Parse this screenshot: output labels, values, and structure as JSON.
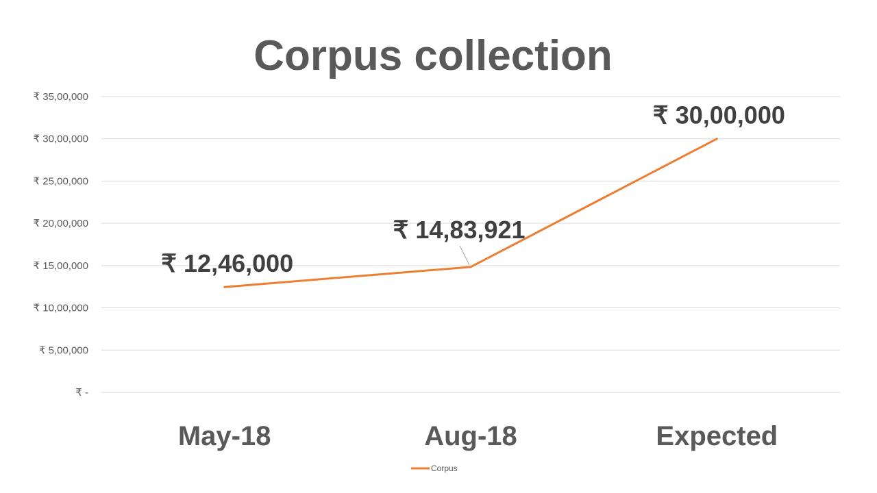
{
  "chart_data": {
    "type": "line",
    "title": "Corpus collection",
    "categories": [
      "May-18",
      "Aug-18",
      "Expected"
    ],
    "series": [
      {
        "name": "Corpus",
        "values": [
          1246000,
          1483921,
          3000000
        ],
        "data_labels": [
          "₹ 12,46,000",
          "₹ 14,83,921",
          "₹ 30,00,000"
        ]
      }
    ],
    "ylim": [
      0,
      3500000
    ],
    "y_ticks": [
      0,
      500000,
      1000000,
      1500000,
      2000000,
      2500000,
      3000000,
      3500000
    ],
    "y_tick_labels": [
      "₹ -",
      "₹ 5,00,000",
      "₹ 10,00,000",
      "₹ 15,00,000",
      "₹ 20,00,000",
      "₹ 25,00,000",
      "₹ 30,00,000",
      "₹ 35,00,000"
    ],
    "grid": true,
    "legend": "bottom",
    "colors": {
      "line": "#ED7D31",
      "grid": "#D9D9D9",
      "text": "#595959",
      "label": "#404040"
    }
  }
}
